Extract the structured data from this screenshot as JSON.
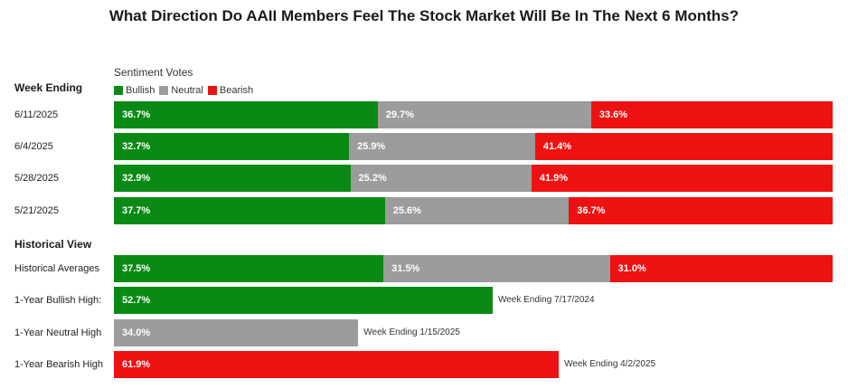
{
  "title": "What Direction Do AAII Members Feel The Stock Market Will Be In The Next 6 Months?",
  "colors": {
    "bullish": "#0a8a14",
    "neutral": "#9c9c9c",
    "bearish": "#ee1111"
  },
  "legend": {
    "title": "Sentiment Votes",
    "items": [
      "Bullish",
      "Neutral",
      "Bearish"
    ]
  },
  "sections": {
    "weekly": "Week Ending",
    "historical": "Historical View"
  },
  "chart_data": {
    "type": "bar",
    "stacked": true,
    "orientation": "horizontal",
    "xlim": [
      0,
      100
    ],
    "categories": [
      "6/11/2025",
      "6/4/2025",
      "5/28/2025",
      "5/21/2025",
      "Historical Averages",
      "1-Year Bullish High:",
      "1-Year Neutral High",
      "1-Year Bearish High"
    ],
    "rows": [
      {
        "label": "6/11/2025",
        "values": {
          "bullish": 36.7,
          "neutral": 29.7,
          "bearish": 33.6
        },
        "texts": {
          "bullish": "36.7%",
          "neutral": "29.7%",
          "bearish": "33.6%"
        }
      },
      {
        "label": "6/4/2025",
        "values": {
          "bullish": 32.7,
          "neutral": 25.9,
          "bearish": 41.4
        },
        "texts": {
          "bullish": "32.7%",
          "neutral": "25.9%",
          "bearish": "41.4%"
        }
      },
      {
        "label": "5/28/2025",
        "values": {
          "bullish": 32.9,
          "neutral": 25.2,
          "bearish": 41.9
        },
        "texts": {
          "bullish": "32.9%",
          "neutral": "25.2%",
          "bearish": "41.9%"
        }
      },
      {
        "label": "5/21/2025",
        "values": {
          "bullish": 37.7,
          "neutral": 25.6,
          "bearish": 36.7
        },
        "texts": {
          "bullish": "37.7%",
          "neutral": "25.6%",
          "bearish": "36.7%"
        }
      },
      {
        "label": "Historical Averages",
        "values": {
          "bullish": 37.5,
          "neutral": 31.5,
          "bearish": 31.0
        },
        "texts": {
          "bullish": "37.5%",
          "neutral": "31.5%",
          "bearish": "31.0%"
        }
      },
      {
        "label": "1-Year Bullish High:",
        "values": {
          "bullish": 52.7
        },
        "texts": {
          "bullish": "52.7%"
        },
        "note": "Week Ending 7/17/2024"
      },
      {
        "label": "1-Year Neutral High",
        "values": {
          "neutral": 34.0
        },
        "texts": {
          "neutral": "34.0%"
        },
        "note": "Week Ending 1/15/2025"
      },
      {
        "label": "1-Year Bearish High",
        "values": {
          "bearish": 61.9
        },
        "texts": {
          "bearish": "61.9%"
        },
        "note": "Week Ending 4/2/2025"
      }
    ]
  }
}
